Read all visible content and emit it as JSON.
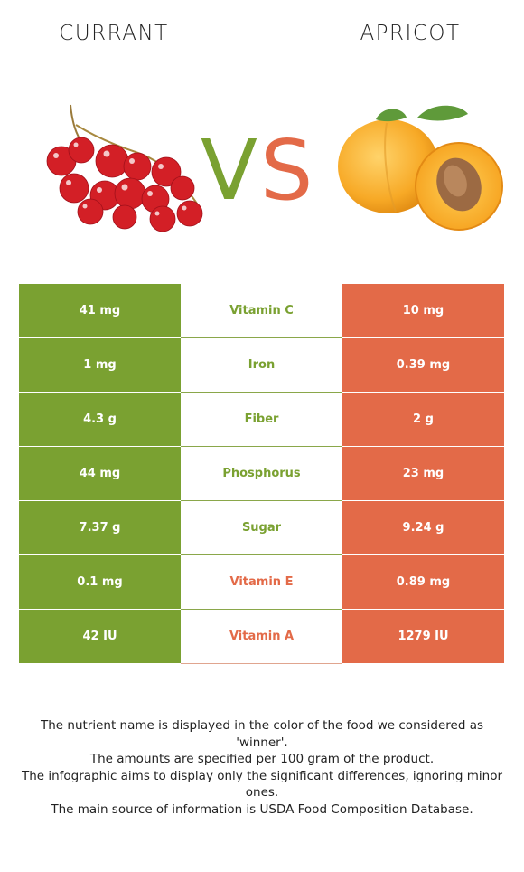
{
  "header": {
    "left_food": "CURRANT",
    "right_food": "APRICOT",
    "vs": "VS"
  },
  "colors": {
    "left_winner": "#7aa131",
    "right_winner": "#e36a48",
    "text": "#222222"
  },
  "rows": [
    {
      "nutrient": "Vitamin C",
      "left": "41 mg",
      "right": "10 mg",
      "winner": "left"
    },
    {
      "nutrient": "Iron",
      "left": "1 mg",
      "right": "0.39 mg",
      "winner": "left"
    },
    {
      "nutrient": "Fiber",
      "left": "4.3 g",
      "right": "2 g",
      "winner": "left"
    },
    {
      "nutrient": "Phosphorus",
      "left": "44 mg",
      "right": "23 mg",
      "winner": "left"
    },
    {
      "nutrient": "Sugar",
      "left": "7.37 g",
      "right": "9.24 g",
      "winner": "left"
    },
    {
      "nutrient": "Vitamin E",
      "left": "0.1 mg",
      "right": "0.89 mg",
      "winner": "right"
    },
    {
      "nutrient": "Vitamin A",
      "left": "42 IU",
      "right": "1279 IU",
      "winner": "right"
    }
  ],
  "notes": [
    "The nutrient name is displayed in the color of the food we considered as 'winner'.",
    "The amounts are specified per 100 gram of the product.",
    "The infographic aims to display only the significant differences, ignoring minor ones.",
    "The main source of information is USDA Food Composition Database."
  ],
  "icons": {
    "left_image": "red-currant-image",
    "right_image": "apricot-image"
  }
}
